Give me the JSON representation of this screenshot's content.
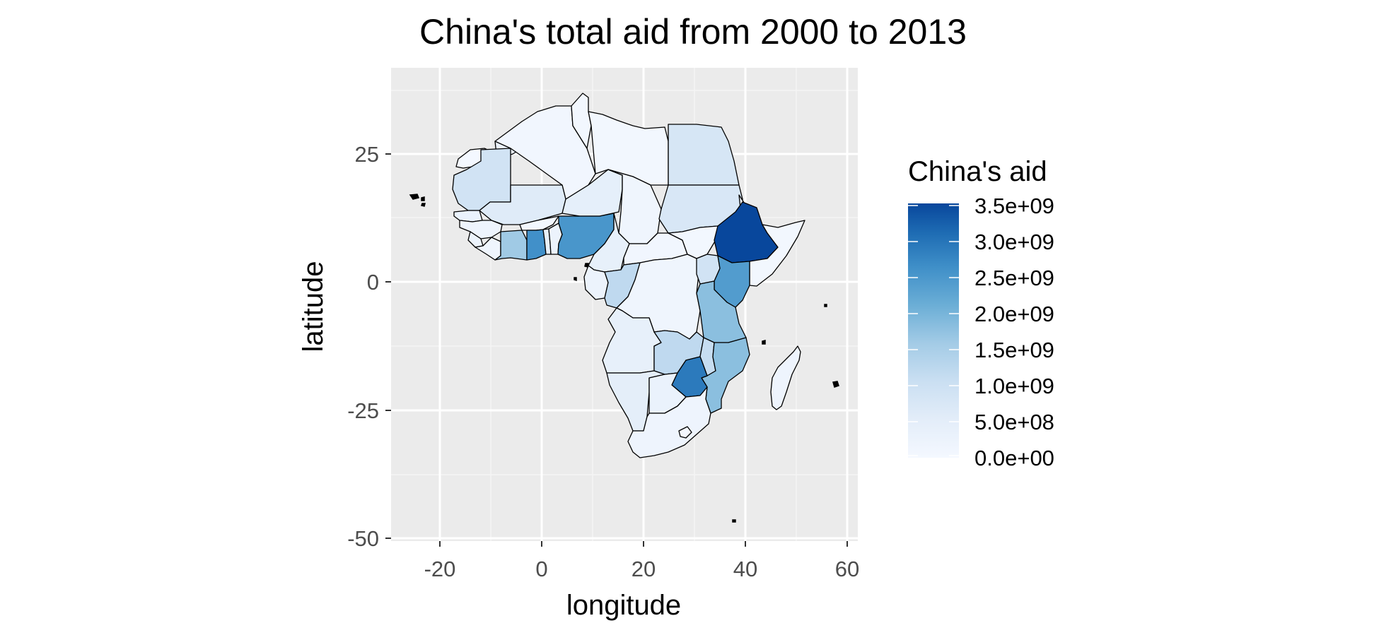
{
  "chart_data": {
    "type": "choropleth",
    "title": "China's total aid from 2000 to 2013",
    "xlabel": "longitude",
    "ylabel": "latitude",
    "xlim": [
      -30,
      62
    ],
    "ylim": [
      -52,
      42
    ],
    "x_ticks": [
      "-20",
      "0",
      "20",
      "40",
      "60"
    ],
    "y_ticks": [
      "25",
      "0",
      "-25",
      "-50"
    ],
    "grid": true,
    "legend": {
      "title": "China's aid",
      "placement": "right",
      "labels": [
        "3.5e+09",
        "3.0e+09",
        "2.5e+09",
        "2.0e+09",
        "1.5e+09",
        "1.0e+09",
        "5.0e+08",
        "0.0e+00"
      ],
      "min": 0,
      "max": 3500000000,
      "color_low": "#f4f8ff",
      "color_high": "#08479c"
    },
    "regions": [
      {
        "id": "morocco",
        "value": 250000000
      },
      {
        "id": "western-sahara",
        "value": 0
      },
      {
        "id": "algeria",
        "value": 100000000
      },
      {
        "id": "tunisia",
        "value": 50000000
      },
      {
        "id": "libya",
        "value": 50000000
      },
      {
        "id": "egypt",
        "value": 800000000
      },
      {
        "id": "mauritania",
        "value": 900000000
      },
      {
        "id": "mali",
        "value": 600000000
      },
      {
        "id": "niger",
        "value": 450000000
      },
      {
        "id": "chad",
        "value": 150000000
      },
      {
        "id": "sudan",
        "value": 750000000
      },
      {
        "id": "senegal",
        "value": 300000000
      },
      {
        "id": "guinea",
        "value": 200000000
      },
      {
        "id": "sierra-leone",
        "value": 250000000
      },
      {
        "id": "liberia",
        "value": 150000000
      },
      {
        "id": "cote-divoire",
        "value": 1600000000
      },
      {
        "id": "burkina-faso",
        "value": 50000000
      },
      {
        "id": "ghana",
        "value": 2600000000
      },
      {
        "id": "togo",
        "value": 400000000
      },
      {
        "id": "benin",
        "value": 250000000
      },
      {
        "id": "nigeria",
        "value": 2500000000
      },
      {
        "id": "cameroon",
        "value": 400000000
      },
      {
        "id": "central-african-republic",
        "value": 100000000
      },
      {
        "id": "south-sudan",
        "value": 50000000
      },
      {
        "id": "ethiopia",
        "value": 3500000000
      },
      {
        "id": "eritrea",
        "value": 200000000
      },
      {
        "id": "somalia",
        "value": 50000000
      },
      {
        "id": "gabon",
        "value": 250000000
      },
      {
        "id": "republic-of-congo",
        "value": 1200000000
      },
      {
        "id": "dr-congo",
        "value": 150000000
      },
      {
        "id": "uganda",
        "value": 900000000
      },
      {
        "id": "kenya",
        "value": 2400000000
      },
      {
        "id": "tanzania",
        "value": 1800000000
      },
      {
        "id": "angola",
        "value": 400000000
      },
      {
        "id": "zambia",
        "value": 1200000000
      },
      {
        "id": "malawi",
        "value": 1100000000
      },
      {
        "id": "mozambique",
        "value": 1800000000
      },
      {
        "id": "zimbabwe",
        "value": 2900000000
      },
      {
        "id": "namibia",
        "value": 500000000
      },
      {
        "id": "botswana",
        "value": 300000000
      },
      {
        "id": "south-africa",
        "value": 200000000
      },
      {
        "id": "madagascar",
        "value": 200000000
      }
    ]
  }
}
